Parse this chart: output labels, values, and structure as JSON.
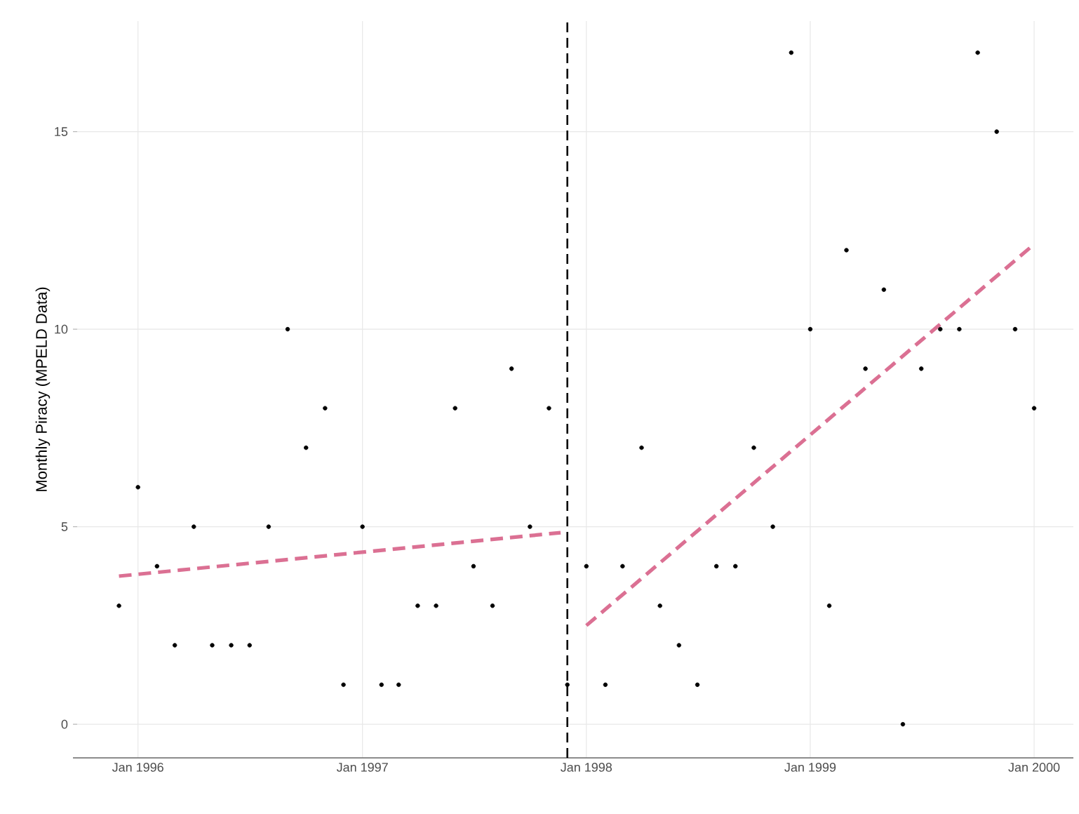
{
  "chart_data": {
    "type": "scatter",
    "ylabel": "Monthly Piracy (MPELD Data)",
    "xlim": [
      "1995-09-17",
      "2000-03-05"
    ],
    "ylim": [
      -0.85,
      17.8
    ],
    "xticks": [
      {
        "value": "1996-01-01",
        "label": "Jan 1996"
      },
      {
        "value": "1997-01-01",
        "label": "Jan 1997"
      },
      {
        "value": "1998-01-01",
        "label": "Jan 1998"
      },
      {
        "value": "1999-01-01",
        "label": "Jan 1999"
      },
      {
        "value": "2000-01-01",
        "label": "Jan 2000"
      }
    ],
    "yticks": [
      0,
      5,
      10,
      15
    ],
    "grid": true,
    "series": [
      {
        "marker": "circle",
        "color": "#000000",
        "x": [
          "1995-12-01",
          "1996-01-01",
          "1996-02-01",
          "1996-03-01",
          "1996-04-01",
          "1996-05-01",
          "1996-06-01",
          "1996-07-01",
          "1996-08-01",
          "1996-09-01",
          "1996-10-01",
          "1996-11-01",
          "1996-12-01",
          "1997-01-01",
          "1997-02-01",
          "1997-03-01",
          "1997-04-01",
          "1997-05-01",
          "1997-06-01",
          "1997-07-01",
          "1997-08-01",
          "1997-09-01",
          "1997-10-01",
          "1997-11-01",
          "1997-12-01",
          "1998-01-01",
          "1998-02-01",
          "1998-03-01",
          "1998-04-01",
          "1998-05-01",
          "1998-06-01",
          "1998-07-01",
          "1998-08-01",
          "1998-09-01",
          "1998-10-01",
          "1998-11-01",
          "1998-12-01",
          "1999-01-01",
          "1999-02-01",
          "1999-03-01",
          "1999-04-01",
          "1999-05-01",
          "1999-06-01",
          "1999-07-01",
          "1999-08-01",
          "1999-09-01",
          "1999-10-01",
          "1999-11-01",
          "1999-12-01",
          "2000-01-01"
        ],
        "values": [
          3,
          6,
          4,
          2,
          5,
          2,
          2,
          2,
          5,
          10,
          7,
          8,
          1,
          5,
          1,
          1,
          3,
          3,
          8,
          4,
          3,
          9,
          5,
          8,
          1,
          4,
          1,
          4,
          7,
          3,
          2,
          1,
          4,
          4,
          7,
          5,
          17,
          10,
          3,
          12,
          9,
          11,
          0,
          9,
          10,
          10,
          17,
          15,
          10,
          8
        ]
      },
      {
        "type": "line",
        "color": "#db7093",
        "line_style": "dashed",
        "x": [
          "1995-12-01",
          "1997-11-20"
        ],
        "values": [
          3.75,
          4.85
        ]
      },
      {
        "type": "line",
        "color": "#db7093",
        "line_style": "dashed",
        "x": [
          "1998-01-01",
          "2000-01-01"
        ],
        "values": [
          2.5,
          12.15
        ]
      }
    ],
    "ref_lines": [
      {
        "axis": "x",
        "value": "1997-12-01",
        "color": "#000000",
        "line_style": "dashed"
      }
    ]
  }
}
